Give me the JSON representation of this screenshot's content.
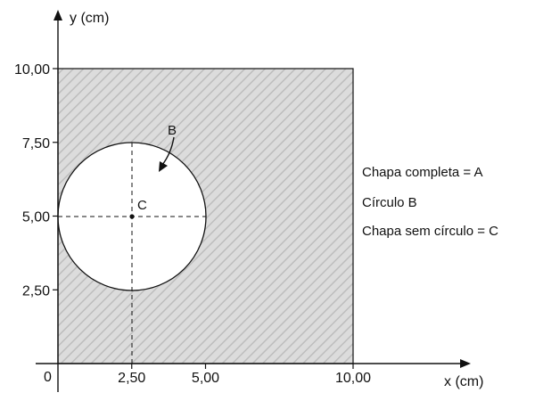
{
  "axes": {
    "x_title": "x (cm)",
    "y_title": "y (cm)",
    "origin_label": "0",
    "x_ticks": [
      {
        "value": 2.5,
        "label": "2,50"
      },
      {
        "value": 5.0,
        "label": "5,00"
      },
      {
        "value": 10.0,
        "label": "10,00"
      }
    ],
    "y_ticks": [
      {
        "value": 2.5,
        "label": "2,50"
      },
      {
        "value": 5.0,
        "label": "5,00"
      },
      {
        "value": 7.5,
        "label": "7,50"
      },
      {
        "value": 10.0,
        "label": "10,00"
      }
    ]
  },
  "plate": {
    "x_range": [
      0,
      10
    ],
    "y_range": [
      0,
      10
    ],
    "hatch_color": "#c4c4c4",
    "fill_color": "#dcdcdc"
  },
  "circle": {
    "center": [
      2.5,
      5.0
    ],
    "radius": 2.5,
    "arrow_label": "B",
    "center_label": "C"
  },
  "legend": {
    "line1": "Chapa completa = A",
    "line2": "Círculo B",
    "line3": "Chapa sem círculo = C"
  }
}
